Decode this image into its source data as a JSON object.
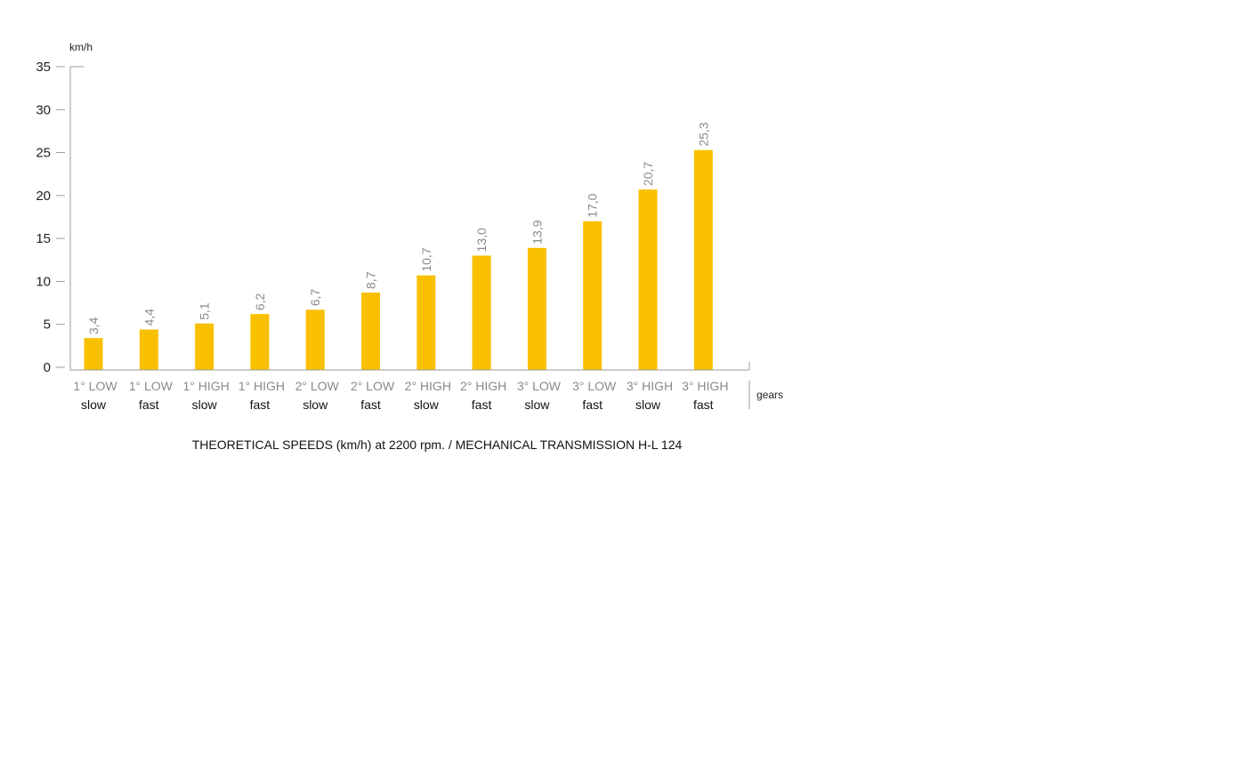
{
  "chart_data": {
    "type": "bar",
    "title": "THEORETICAL SPEEDS (km/h) at 2200 rpm. / MECHANICAL TRANSMISSION H-L 124",
    "ylabel": "km/h",
    "xlabel": "gears",
    "ylim": [
      0,
      35
    ],
    "yticks": [
      0,
      5,
      10,
      15,
      20,
      25,
      30,
      35
    ],
    "categories": [
      {
        "gear": "1° LOW",
        "mode": "slow"
      },
      {
        "gear": "1° LOW",
        "mode": "fast"
      },
      {
        "gear": "1° HIGH",
        "mode": "slow"
      },
      {
        "gear": "1° HIGH",
        "mode": "fast"
      },
      {
        "gear": "2° LOW",
        "mode": "slow"
      },
      {
        "gear": "2° LOW",
        "mode": "fast"
      },
      {
        "gear": "2° HIGH",
        "mode": "slow"
      },
      {
        "gear": "2° HIGH",
        "mode": "fast"
      },
      {
        "gear": "3° LOW",
        "mode": "slow"
      },
      {
        "gear": "3° LOW",
        "mode": "fast"
      },
      {
        "gear": "3° HIGH",
        "mode": "slow"
      },
      {
        "gear": "3° HIGH",
        "mode": "fast"
      }
    ],
    "values": [
      3.4,
      4.4,
      5.1,
      6.2,
      6.7,
      8.7,
      10.7,
      13.0,
      13.9,
      17.0,
      20.7,
      25.3
    ],
    "value_labels": [
      "3,4",
      "4,4",
      "5,1",
      "6,2",
      "6,7",
      "8,7",
      "10,7",
      "13,0",
      "13,9",
      "17,0",
      "20,7",
      "25,3"
    ],
    "grid": false,
    "legend": "none",
    "colors": {
      "bar": "#f9c000",
      "axis": "#9a9a9a",
      "value_label": "#8a8a8a"
    }
  }
}
